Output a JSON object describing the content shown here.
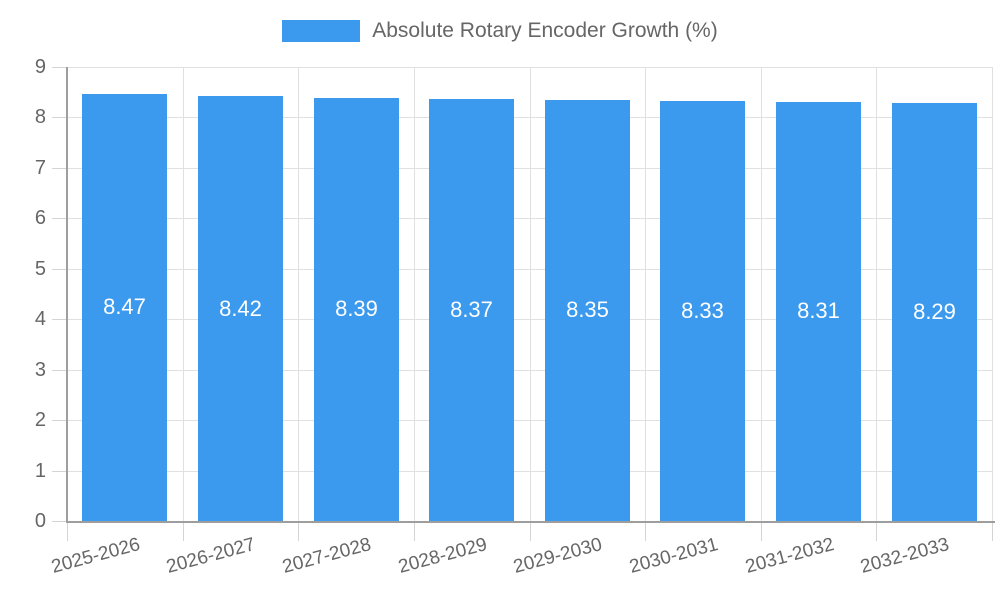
{
  "legend": {
    "label": "Absolute Rotary Encoder Growth (%)"
  },
  "chart_data": {
    "type": "bar",
    "title": "",
    "xlabel": "",
    "ylabel": "",
    "categories": [
      "2025-2026",
      "2026-2027",
      "2027-2028",
      "2028-2029",
      "2029-2030",
      "2030-2031",
      "2031-2032",
      "2032-2033"
    ],
    "values": [
      8.47,
      8.42,
      8.39,
      8.37,
      8.35,
      8.33,
      8.31,
      8.29
    ],
    "value_labels": [
      "8.47",
      "8.42",
      "8.39",
      "8.37",
      "8.35",
      "8.33",
      "8.31",
      "8.29"
    ],
    "series_name": "Absolute Rotary Encoder Growth (%)",
    "ylim": [
      0,
      9
    ],
    "y_ticks": [
      "0",
      "1",
      "2",
      "3",
      "4",
      "5",
      "6",
      "7",
      "8",
      "9"
    ],
    "grid": true,
    "legend_position": "top",
    "bar_color": "#3c9aee",
    "bar_label_color": "#ffffff"
  },
  "colors": {
    "bar": "#3c9aee",
    "grid": "#e0e0e0",
    "tick": "#d4d4d4",
    "axis": "#9e9e9e",
    "text": "#666666",
    "bar_label": "#ffffff",
    "background": "#ffffff"
  }
}
